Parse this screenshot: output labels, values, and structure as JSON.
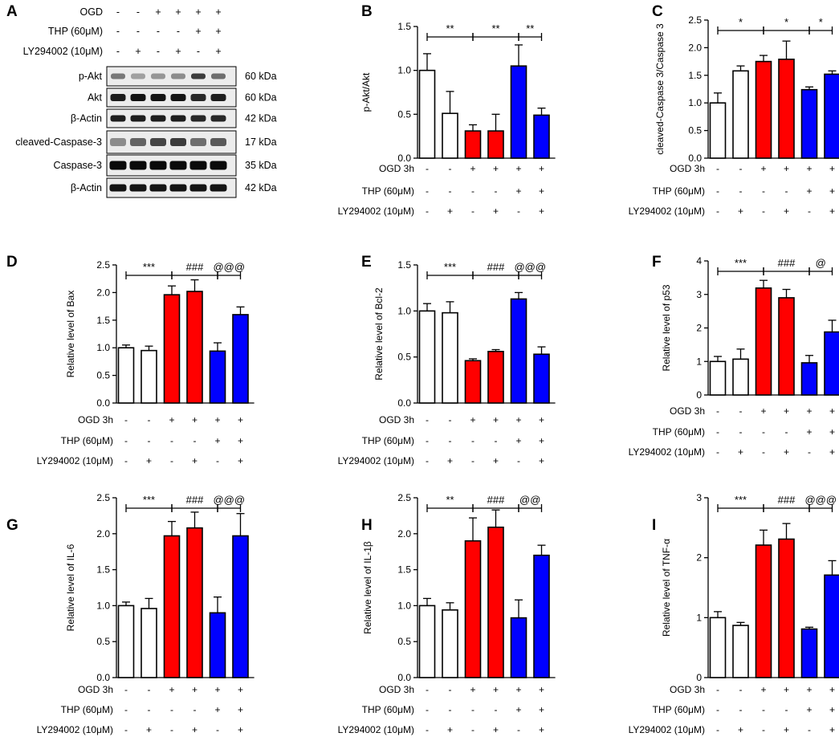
{
  "colors": {
    "control": "#ffffff",
    "ogd": "#ff0000",
    "thp": "#0000ff",
    "ink": "#000000"
  },
  "condition_labels": [
    "OGD 3h",
    "THP (60μM)",
    "LY294002 (10μM)"
  ],
  "condition_signs": [
    [
      "-",
      "-",
      "+",
      "+",
      "+",
      "+"
    ],
    [
      "-",
      "-",
      "-",
      "-",
      "+",
      "+"
    ],
    [
      "-",
      "+",
      "-",
      "+",
      "-",
      "+"
    ]
  ],
  "western_blot": {
    "panel_label": "A",
    "header_labels": [
      "OGD",
      "THP (60μM)",
      "LY294002 (10μM)"
    ],
    "header_signs": [
      [
        "-",
        "-",
        "+",
        "+",
        "+",
        "+"
      ],
      [
        "-",
        "-",
        "-",
        "-",
        "+",
        "+"
      ],
      [
        "-",
        "+",
        "-",
        "+",
        "-",
        "+"
      ]
    ],
    "bands": [
      {
        "protein": "p-Akt",
        "weight": "60 kDa",
        "intensity": [
          0.45,
          0.25,
          0.3,
          0.35,
          0.75,
          0.5
        ]
      },
      {
        "protein": "Akt",
        "weight": "60 kDa",
        "intensity": [
          0.9,
          0.95,
          0.95,
          0.95,
          0.85,
          0.9
        ]
      },
      {
        "protein": "β-Actin",
        "weight": "42 kDa",
        "intensity": [
          0.9,
          0.9,
          0.9,
          0.9,
          0.85,
          0.85
        ]
      },
      {
        "protein": "cleaved-Caspase-3",
        "weight": "17 kDa",
        "intensity": [
          0.35,
          0.55,
          0.7,
          0.75,
          0.5,
          0.6
        ]
      },
      {
        "protein": "Caspase-3",
        "weight": "35 kDa",
        "intensity": [
          1.0,
          1.0,
          1.0,
          1.0,
          1.0,
          1.0
        ]
      },
      {
        "protein": "β-Actin",
        "weight": "42 kDa",
        "intensity": [
          0.95,
          0.95,
          0.95,
          0.95,
          0.95,
          0.95
        ]
      }
    ]
  },
  "chart_data": [
    {
      "panel": "B",
      "type": "bar",
      "ylabel": "p-Akt/Akt",
      "ylim": [
        0,
        1.5
      ],
      "yticks": [
        "0.0",
        "0.5",
        "1.0",
        "1.5"
      ],
      "values": [
        1.0,
        0.51,
        0.31,
        0.31,
        1.05,
        0.49
      ],
      "errors": [
        0.19,
        0.25,
        0.07,
        0.19,
        0.24,
        0.08
      ],
      "brackets": [
        {
          "from": 0,
          "to": 2,
          "label": "**"
        },
        {
          "from": 2,
          "to": 4,
          "label": "**"
        },
        {
          "from": 4,
          "to": 5,
          "label": "**"
        }
      ]
    },
    {
      "panel": "C",
      "type": "bar",
      "ylabel": "cleaved-Caspase 3/Caspase 3",
      "ylim": [
        0,
        2.5
      ],
      "yticks": [
        "0.0",
        "0.5",
        "1.0",
        "1.5",
        "2.0",
        "2.5"
      ],
      "values": [
        1.0,
        1.58,
        1.75,
        1.79,
        1.24,
        1.52
      ],
      "errors": [
        0.18,
        0.09,
        0.11,
        0.33,
        0.05,
        0.06
      ],
      "brackets": [
        {
          "from": 0,
          "to": 2,
          "label": "*"
        },
        {
          "from": 2,
          "to": 4,
          "label": "*"
        },
        {
          "from": 4,
          "to": 5,
          "label": "*"
        }
      ]
    },
    {
      "panel": "D",
      "type": "bar",
      "ylabel": "Relative level of Bax",
      "ylim": [
        0,
        2.5
      ],
      "yticks": [
        "0.0",
        "0.5",
        "1.0",
        "1.5",
        "2.0",
        "2.5"
      ],
      "values": [
        1.0,
        0.95,
        1.96,
        2.02,
        0.94,
        1.6
      ],
      "errors": [
        0.05,
        0.08,
        0.16,
        0.21,
        0.15,
        0.14
      ],
      "brackets": [
        {
          "from": 0,
          "to": 2,
          "label": "***"
        },
        {
          "from": 2,
          "to": 4,
          "label": "###"
        },
        {
          "from": 4,
          "to": 5,
          "label": "@@@"
        }
      ]
    },
    {
      "panel": "E",
      "type": "bar",
      "ylabel": "Relative level of Bcl-2",
      "ylim": [
        0,
        1.5
      ],
      "yticks": [
        "0.0",
        "0.5",
        "1.0",
        "1.5"
      ],
      "values": [
        1.0,
        0.98,
        0.46,
        0.56,
        1.13,
        0.53
      ],
      "errors": [
        0.08,
        0.12,
        0.02,
        0.02,
        0.07,
        0.08
      ],
      "brackets": [
        {
          "from": 0,
          "to": 2,
          "label": "***"
        },
        {
          "from": 2,
          "to": 4,
          "label": "###"
        },
        {
          "from": 4,
          "to": 5,
          "label": "@@@"
        }
      ]
    },
    {
      "panel": "F",
      "type": "bar",
      "ylabel": "Relative level of p53",
      "ylim": [
        0,
        4
      ],
      "yticks": [
        "0",
        "1",
        "2",
        "3",
        "4"
      ],
      "values": [
        1.0,
        1.07,
        3.19,
        2.9,
        0.96,
        1.88
      ],
      "errors": [
        0.15,
        0.3,
        0.23,
        0.25,
        0.22,
        0.35
      ],
      "brackets": [
        {
          "from": 0,
          "to": 2,
          "label": "***"
        },
        {
          "from": 2,
          "to": 4,
          "label": "###"
        },
        {
          "from": 4,
          "to": 5,
          "label": "@"
        }
      ]
    },
    {
      "panel": "G",
      "type": "bar",
      "ylabel": "Relative level of IL-6",
      "ylim": [
        0,
        2.5
      ],
      "yticks": [
        "0.0",
        "0.5",
        "1.0",
        "1.5",
        "2.0",
        "2.5"
      ],
      "values": [
        1.0,
        0.96,
        1.97,
        2.08,
        0.9,
        1.97
      ],
      "errors": [
        0.05,
        0.14,
        0.2,
        0.22,
        0.22,
        0.31
      ],
      "brackets": [
        {
          "from": 0,
          "to": 2,
          "label": "***"
        },
        {
          "from": 2,
          "to": 4,
          "label": "###"
        },
        {
          "from": 4,
          "to": 5,
          "label": "@@@"
        }
      ]
    },
    {
      "panel": "H",
      "type": "bar",
      "ylabel": "Relative level of IL-1β",
      "ylim": [
        0,
        2.5
      ],
      "yticks": [
        "0.0",
        "0.5",
        "1.0",
        "1.5",
        "2.0",
        "2.5"
      ],
      "values": [
        1.0,
        0.94,
        1.9,
        2.09,
        0.83,
        1.7
      ],
      "errors": [
        0.1,
        0.1,
        0.32,
        0.24,
        0.25,
        0.14
      ],
      "brackets": [
        {
          "from": 0,
          "to": 2,
          "label": "**"
        },
        {
          "from": 2,
          "to": 4,
          "label": "###"
        },
        {
          "from": 4,
          "to": 5,
          "label": "@@"
        }
      ]
    },
    {
      "panel": "I",
      "type": "bar",
      "ylabel": "Relative level of TNF-α",
      "ylim": [
        0,
        3
      ],
      "yticks": [
        "0",
        "1",
        "2",
        "3"
      ],
      "values": [
        1.0,
        0.87,
        2.21,
        2.31,
        0.81,
        1.71
      ],
      "errors": [
        0.1,
        0.05,
        0.25,
        0.26,
        0.03,
        0.24
      ],
      "brackets": [
        {
          "from": 0,
          "to": 2,
          "label": "***"
        },
        {
          "from": 2,
          "to": 4,
          "label": "###"
        },
        {
          "from": 4,
          "to": 5,
          "label": "@@@"
        }
      ]
    }
  ]
}
